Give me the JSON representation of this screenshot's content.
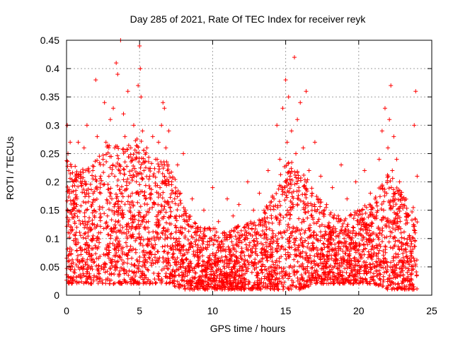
{
  "chart_data": {
    "type": "scatter",
    "title": "Day 285 of 2021, Rate Of TEC Index for receiver reyk",
    "xlabel": "GPS time / hours",
    "ylabel": "ROTI / TECUs",
    "xlim": [
      0,
      25
    ],
    "ylim": [
      0,
      0.45
    ],
    "xticks": [
      0,
      5,
      10,
      15,
      20,
      25
    ],
    "yticks": [
      0,
      0.05,
      0.1,
      0.15,
      0.2,
      0.25,
      0.3,
      0.35,
      0.4,
      0.45
    ],
    "xtick_labels": [
      "0",
      "5",
      "10",
      "15",
      "20",
      "25"
    ],
    "ytick_labels": [
      "0",
      "0.05",
      "0.1",
      "0.15",
      "0.2",
      "0.25",
      "0.3",
      "0.35",
      "0.4",
      "0.45"
    ],
    "grid": true,
    "marker": "+",
    "color": "#ff0000",
    "series": [
      {
        "points": [
          [
            0.05,
            0.3
          ],
          [
            0.1,
            0.25
          ],
          [
            0.15,
            0.22
          ],
          [
            0.2,
            0.18
          ],
          [
            0.25,
            0.27
          ],
          [
            0.3,
            0.12
          ],
          [
            0.35,
            0.08
          ],
          [
            0.4,
            0.05
          ],
          [
            0.45,
            0.15
          ],
          [
            0.5,
            0.2
          ],
          [
            0.6,
            0.1
          ],
          [
            0.7,
            0.16
          ],
          [
            0.8,
            0.27
          ],
          [
            0.9,
            0.06
          ],
          [
            1.0,
            0.21
          ],
          [
            1.1,
            0.13
          ],
          [
            1.2,
            0.26
          ],
          [
            1.3,
            0.09
          ],
          [
            1.4,
            0.3
          ],
          [
            1.5,
            0.18
          ],
          [
            1.6,
            0.12
          ],
          [
            1.7,
            0.07
          ],
          [
            1.8,
            0.22
          ],
          [
            1.9,
            0.15
          ],
          [
            2.0,
            0.38
          ],
          [
            2.1,
            0.28
          ],
          [
            2.2,
            0.11
          ],
          [
            2.3,
            0.19
          ],
          [
            2.4,
            0.05
          ],
          [
            2.5,
            0.24
          ],
          [
            2.6,
            0.34
          ],
          [
            2.7,
            0.27
          ],
          [
            2.8,
            0.14
          ],
          [
            2.9,
            0.21
          ],
          [
            3.0,
            0.31
          ],
          [
            3.1,
            0.17
          ],
          [
            3.2,
            0.33
          ],
          [
            3.3,
            0.26
          ],
          [
            3.4,
            0.41
          ],
          [
            3.5,
            0.39
          ],
          [
            3.6,
            0.23
          ],
          [
            3.7,
            0.45
          ],
          [
            3.8,
            0.15
          ],
          [
            3.9,
            0.32
          ],
          [
            4.0,
            0.28
          ],
          [
            4.1,
            0.2
          ],
          [
            4.2,
            0.36
          ],
          [
            4.3,
            0.12
          ],
          [
            4.4,
            0.26
          ],
          [
            4.5,
            0.18
          ],
          [
            4.6,
            0.3
          ],
          [
            4.7,
            0.24
          ],
          [
            4.8,
            0.1
          ],
          [
            4.9,
            0.37
          ],
          [
            5.0,
            0.44
          ],
          [
            5.05,
            0.4
          ],
          [
            5.1,
            0.35
          ],
          [
            5.2,
            0.29
          ],
          [
            5.3,
            0.22
          ],
          [
            5.4,
            0.17
          ],
          [
            5.5,
            0.26
          ],
          [
            5.6,
            0.13
          ],
          [
            5.7,
            0.21
          ],
          [
            5.8,
            0.09
          ],
          [
            5.9,
            0.28
          ],
          [
            6.0,
            0.16
          ],
          [
            6.1,
            0.24
          ],
          [
            6.2,
            0.11
          ],
          [
            6.3,
            0.27
          ],
          [
            6.4,
            0.19
          ],
          [
            6.5,
            0.3
          ],
          [
            6.6,
            0.34
          ],
          [
            6.7,
            0.33
          ],
          [
            6.8,
            0.26
          ],
          [
            6.9,
            0.22
          ],
          [
            7.0,
            0.29
          ],
          [
            7.1,
            0.14
          ],
          [
            7.2,
            0.2
          ],
          [
            7.3,
            0.08
          ],
          [
            7.4,
            0.17
          ],
          [
            7.5,
            0.12
          ],
          [
            7.6,
            0.23
          ],
          [
            7.7,
            0.1
          ],
          [
            7.8,
            0.18
          ],
          [
            7.9,
            0.06
          ],
          [
            8.0,
            0.25
          ],
          [
            8.2,
            0.14
          ],
          [
            8.4,
            0.09
          ],
          [
            8.6,
            0.17
          ],
          [
            8.8,
            0.05
          ],
          [
            9.0,
            0.12
          ],
          [
            9.2,
            0.08
          ],
          [
            9.4,
            0.15
          ],
          [
            9.6,
            0.04
          ],
          [
            9.8,
            0.1
          ],
          [
            10.0,
            0.19
          ],
          [
            10.2,
            0.07
          ],
          [
            10.4,
            0.13
          ],
          [
            10.6,
            0.03
          ],
          [
            10.8,
            0.11
          ],
          [
            11.0,
            0.17
          ],
          [
            11.2,
            0.06
          ],
          [
            11.4,
            0.14
          ],
          [
            11.6,
            0.09
          ],
          [
            11.8,
            0.16
          ],
          [
            12.0,
            0.05
          ],
          [
            12.2,
            0.12
          ],
          [
            12.4,
            0.2
          ],
          [
            12.6,
            0.08
          ],
          [
            12.8,
            0.15
          ],
          [
            13.0,
            0.1
          ],
          [
            13.2,
            0.18
          ],
          [
            13.4,
            0.04
          ],
          [
            13.6,
            0.13
          ],
          [
            13.8,
            0.22
          ],
          [
            14.0,
            0.07
          ],
          [
            14.2,
            0.17
          ],
          [
            14.4,
            0.3
          ],
          [
            14.6,
            0.24
          ],
          [
            14.8,
            0.33
          ],
          [
            15.0,
            0.38
          ],
          [
            15.1,
            0.27
          ],
          [
            15.2,
            0.35
          ],
          [
            15.3,
            0.21
          ],
          [
            15.4,
            0.29
          ],
          [
            15.5,
            0.16
          ],
          [
            15.6,
            0.42
          ],
          [
            15.7,
            0.25
          ],
          [
            15.8,
            0.31
          ],
          [
            15.9,
            0.19
          ],
          [
            16.0,
            0.34
          ],
          [
            16.2,
            0.26
          ],
          [
            16.4,
            0.36
          ],
          [
            16.6,
            0.22
          ],
          [
            16.8,
            0.18
          ],
          [
            17.0,
            0.27
          ],
          [
            17.2,
            0.13
          ],
          [
            17.4,
            0.21
          ],
          [
            17.6,
            0.09
          ],
          [
            17.8,
            0.16
          ],
          [
            18.0,
            0.11
          ],
          [
            18.2,
            0.19
          ],
          [
            18.4,
            0.06
          ],
          [
            18.6,
            0.14
          ],
          [
            18.8,
            0.23
          ],
          [
            19.0,
            0.1
          ],
          [
            19.2,
            0.17
          ],
          [
            19.4,
            0.05
          ],
          [
            19.6,
            0.12
          ],
          [
            19.8,
            0.2
          ],
          [
            20.0,
            0.08
          ],
          [
            20.2,
            0.15
          ],
          [
            20.4,
            0.22
          ],
          [
            20.6,
            0.11
          ],
          [
            20.8,
            0.18
          ],
          [
            21.0,
            0.07
          ],
          [
            21.2,
            0.14
          ],
          [
            21.4,
            0.24
          ],
          [
            21.6,
            0.29
          ],
          [
            21.8,
            0.33
          ],
          [
            22.0,
            0.26
          ],
          [
            22.1,
            0.31
          ],
          [
            22.2,
            0.37
          ],
          [
            22.3,
            0.22
          ],
          [
            22.4,
            0.28
          ],
          [
            22.5,
            0.18
          ],
          [
            22.6,
            0.24
          ],
          [
            22.7,
            0.14
          ],
          [
            22.8,
            0.2
          ],
          [
            22.9,
            0.11
          ],
          [
            23.0,
            0.17
          ],
          [
            23.2,
            0.09
          ],
          [
            23.4,
            0.14
          ],
          [
            23.6,
            0.06
          ],
          [
            23.8,
            0.3
          ],
          [
            23.9,
            0.36
          ],
          [
            24.0,
            0.21
          ]
        ]
      }
    ],
    "envelope": {
      "hours": [
        0,
        1,
        2,
        3,
        4,
        5,
        6,
        7,
        8,
        9,
        10,
        11,
        12,
        13,
        14,
        15,
        16,
        17,
        18,
        19,
        20,
        21,
        22,
        23,
        24
      ],
      "upper": [
        0.24,
        0.22,
        0.24,
        0.27,
        0.26,
        0.28,
        0.24,
        0.24,
        0.16,
        0.12,
        0.12,
        0.11,
        0.13,
        0.13,
        0.17,
        0.24,
        0.23,
        0.18,
        0.15,
        0.14,
        0.15,
        0.17,
        0.22,
        0.18,
        0.15
      ],
      "lower": [
        0.02,
        0.02,
        0.02,
        0.02,
        0.02,
        0.02,
        0.02,
        0.02,
        0.01,
        0.01,
        0.01,
        0.01,
        0.01,
        0.01,
        0.01,
        0.01,
        0.01,
        0.02,
        0.02,
        0.02,
        0.02,
        0.02,
        0.01,
        0.01,
        0.01
      ]
    }
  }
}
